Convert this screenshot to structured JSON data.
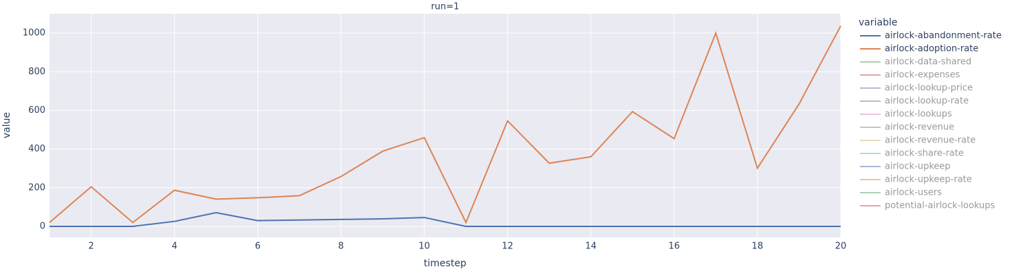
{
  "chart_data": {
    "type": "line",
    "title": "run=1",
    "x_label": "timestep",
    "y_label": "value",
    "legend_title": "variable",
    "x": [
      1,
      2,
      3,
      4,
      5,
      6,
      7,
      8,
      9,
      10,
      11,
      12,
      13,
      14,
      15,
      16,
      17,
      18,
      19,
      20
    ],
    "xlim": [
      1,
      20
    ],
    "xticks": [
      2,
      4,
      6,
      8,
      10,
      12,
      14,
      16,
      18,
      20
    ],
    "ylim": [
      -57,
      1100
    ],
    "yticks": [
      0,
      200,
      400,
      600,
      800,
      1000
    ],
    "grid": true,
    "legend": "right",
    "series": [
      {
        "name": "airlock-abandonment-rate",
        "color": "#4c72b0",
        "values": [
          0,
          0,
          0,
          26,
          71,
          30,
          33,
          36,
          39,
          46,
          0,
          0,
          0,
          0,
          0,
          0,
          0,
          0,
          0,
          0
        ]
      },
      {
        "name": "airlock-adoption-rate",
        "color": "#dd8452",
        "values": [
          20,
          205,
          20,
          187,
          141,
          148,
          159,
          258,
          389,
          459,
          20,
          546,
          327,
          360,
          594,
          454,
          1000,
          301,
          633,
          1037
        ]
      },
      {
        "name": "airlock-data-shared",
        "color": "#55a868",
        "visible": "legendonly"
      },
      {
        "name": "airlock-expenses",
        "color": "#c44e52",
        "visible": "legendonly"
      },
      {
        "name": "airlock-lookup-price",
        "color": "#8172b3",
        "visible": "legendonly"
      },
      {
        "name": "airlock-lookup-rate",
        "color": "#937860",
        "visible": "legendonly"
      },
      {
        "name": "airlock-lookups",
        "color": "#da8bc3",
        "visible": "legendonly"
      },
      {
        "name": "airlock-revenue",
        "color": "#8c8c8c",
        "visible": "legendonly"
      },
      {
        "name": "airlock-revenue-rate",
        "color": "#ccb974",
        "visible": "legendonly"
      },
      {
        "name": "airlock-share-rate",
        "color": "#64b5cd",
        "visible": "legendonly"
      },
      {
        "name": "airlock-upkeep",
        "color": "#4c72b0",
        "visible": "legendonly"
      },
      {
        "name": "airlock-upkeep-rate",
        "color": "#dd8452",
        "visible": "legendonly"
      },
      {
        "name": "airlock-users",
        "color": "#55a868",
        "visible": "legendonly"
      },
      {
        "name": "potential-airlock-lookups",
        "color": "#c44e52",
        "visible": "legendonly"
      }
    ]
  }
}
